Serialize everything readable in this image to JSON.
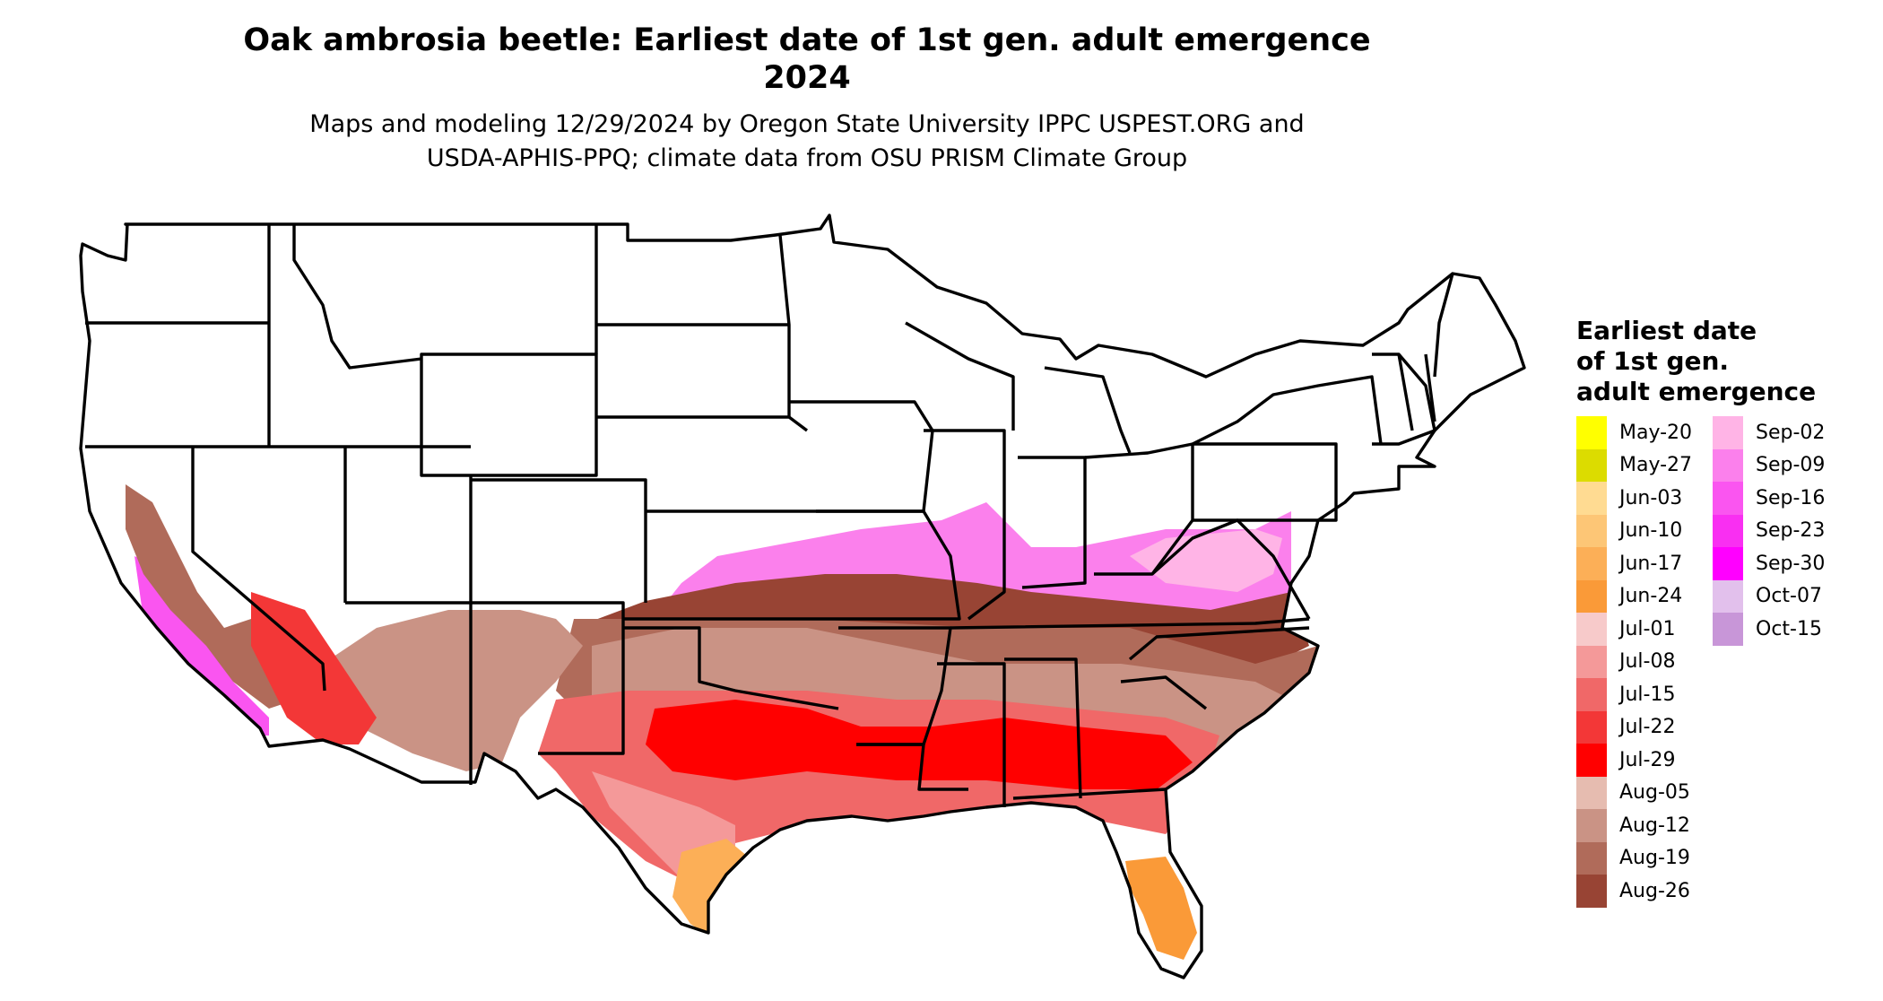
{
  "title": {
    "line1": "Oak ambrosia beetle: Earliest date of 1st gen. adult emergence",
    "line2": "2024"
  },
  "subtitle": {
    "line1": "Maps and modeling 12/29/2024 by Oregon State University IPPC USPEST.ORG and",
    "line2": "USDA-APHIS-PPQ; climate data from OSU PRISM Climate Group"
  },
  "legend": {
    "title_lines": [
      "Earliest date",
      "of 1st gen.",
      "adult emergence"
    ],
    "columns": [
      [
        {
          "label": "May-20",
          "color": "#FFFF00"
        },
        {
          "label": "May-27",
          "color": "#DCDC00"
        },
        {
          "label": "Jun-03",
          "color": "#FFDB92"
        },
        {
          "label": "Jun-10",
          "color": "#FDC676"
        },
        {
          "label": "Jun-17",
          "color": "#FCAF57"
        },
        {
          "label": "Jun-24",
          "color": "#FA9A38"
        },
        {
          "label": "Jul-01",
          "color": "#F7CACA"
        },
        {
          "label": "Jul-08",
          "color": "#F49999"
        },
        {
          "label": "Jul-15",
          "color": "#F06868"
        },
        {
          "label": "Jul-22",
          "color": "#F33737"
        },
        {
          "label": "Jul-29",
          "color": "#FF0000"
        },
        {
          "label": "Aug-05",
          "color": "#E6BCB0"
        },
        {
          "label": "Aug-12",
          "color": "#CA9385"
        },
        {
          "label": "Aug-19",
          "color": "#B06B5A"
        },
        {
          "label": "Aug-26",
          "color": "#984434"
        }
      ],
      [
        {
          "label": "Sep-02",
          "color": "#FFB4E6"
        },
        {
          "label": "Sep-09",
          "color": "#FB80EC"
        },
        {
          "label": "Sep-16",
          "color": "#FA55F0"
        },
        {
          "label": "Sep-23",
          "color": "#F92FF2"
        },
        {
          "label": "Sep-30",
          "color": "#FF00FF"
        },
        {
          "label": "Oct-07",
          "color": "#E2C0EC"
        },
        {
          "label": "Oct-15",
          "color": "#C896D8"
        }
      ]
    ]
  },
  "map": {
    "region": "Contiguous United States",
    "states_outlined": true
  }
}
